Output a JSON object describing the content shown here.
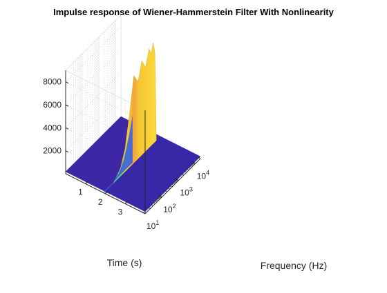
{
  "chart_data": {
    "type": "surface",
    "title": "Impulse response of Wiener-Hammerstein Filter With Nonlinearity",
    "xlabel": "Frequency (Hz)",
    "ylabel": "Time (s)",
    "zlabel": "",
    "x_scale": "log",
    "x_range": [
      10,
      20000
    ],
    "y_range": [
      0,
      4
    ],
    "z_range": [
      0,
      9000
    ],
    "x_ticks": [
      {
        "value": 10,
        "base": "10",
        "exp": "1"
      },
      {
        "value": 100,
        "base": "10",
        "exp": "2"
      },
      {
        "value": 1000,
        "base": "10",
        "exp": "3"
      },
      {
        "value": 10000,
        "base": "10",
        "exp": "4"
      }
    ],
    "y_ticks": [
      1,
      2,
      3
    ],
    "z_ticks": [
      2000,
      4000,
      6000,
      8000
    ],
    "grid": true,
    "colormap": "parula",
    "baseline_level": 0,
    "impulse_time": 2,
    "ridge": {
      "frequency": [
        10,
        30,
        80,
        150,
        300,
        500,
        900,
        1500,
        2500,
        4000,
        5500,
        7000,
        9000,
        11000
      ],
      "amplitude": [
        20,
        200,
        900,
        2200,
        5200,
        7800,
        6900,
        8400,
        7500,
        8800,
        8200,
        9000,
        8000,
        0
      ]
    }
  }
}
